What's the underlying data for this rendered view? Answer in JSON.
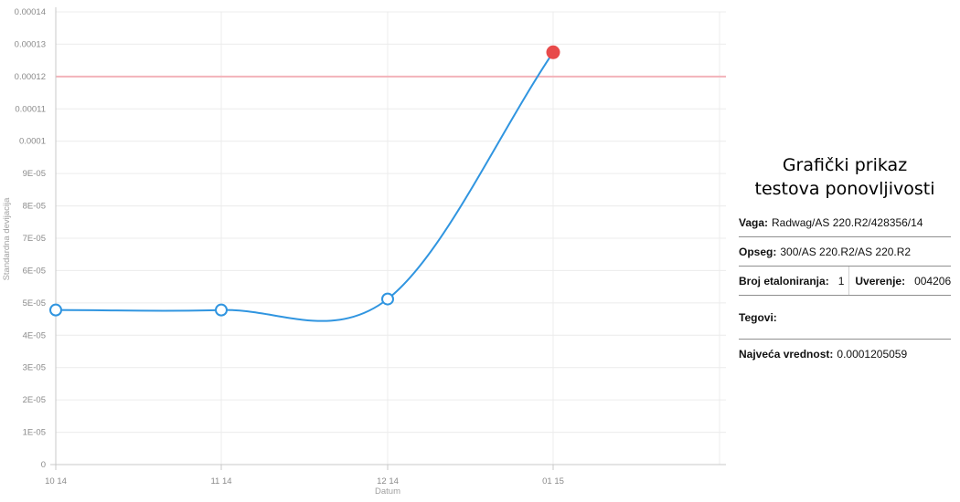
{
  "chart_data": {
    "type": "line",
    "title": "",
    "xlabel": "Datum",
    "ylabel": "Standardna devijacija",
    "x_categories": [
      "10 14",
      "11 14",
      "12 14",
      "01 15"
    ],
    "ylim": [
      0,
      0.00014
    ],
    "y_ticks": [
      "0",
      "1E-05",
      "2E-05",
      "3E-05",
      "4E-05",
      "5E-05",
      "6E-05",
      "7E-05",
      "8E-05",
      "9E-05",
      "0.0001",
      "0.00011",
      "0.00012",
      "0.00013",
      "0.00014"
    ],
    "series": [
      {
        "values": [
          4.78e-05,
          4.78e-05,
          5.12e-05,
          0.0001275
        ],
        "color": "#3095e0",
        "highlight_color": "#e84a4a",
        "highlight_index": 3
      }
    ],
    "threshold": {
      "value": 0.00012,
      "color": "#f3b3ba"
    },
    "grid": true,
    "legend": "none"
  },
  "panel": {
    "title_line1": "Grafički prikaz",
    "title_line2": "testova ponovljivosti",
    "vaga_label": "Vaga:",
    "vaga_value": "Radwag/AS 220.R2/428356/14",
    "opseg_label": "Opseg:",
    "opseg_value": "300/AS 220.R2/AS 220.R2",
    "broj_label": "Broj etaloniranja:",
    "broj_value": "1",
    "uverenje_label": "Uverenje:",
    "uverenje_value": "004206",
    "tegovi_label": "Tegovi:",
    "tegovi_value": "",
    "najveca_label": "Najveća vrednost:",
    "najveca_value": "0.0001205059"
  }
}
